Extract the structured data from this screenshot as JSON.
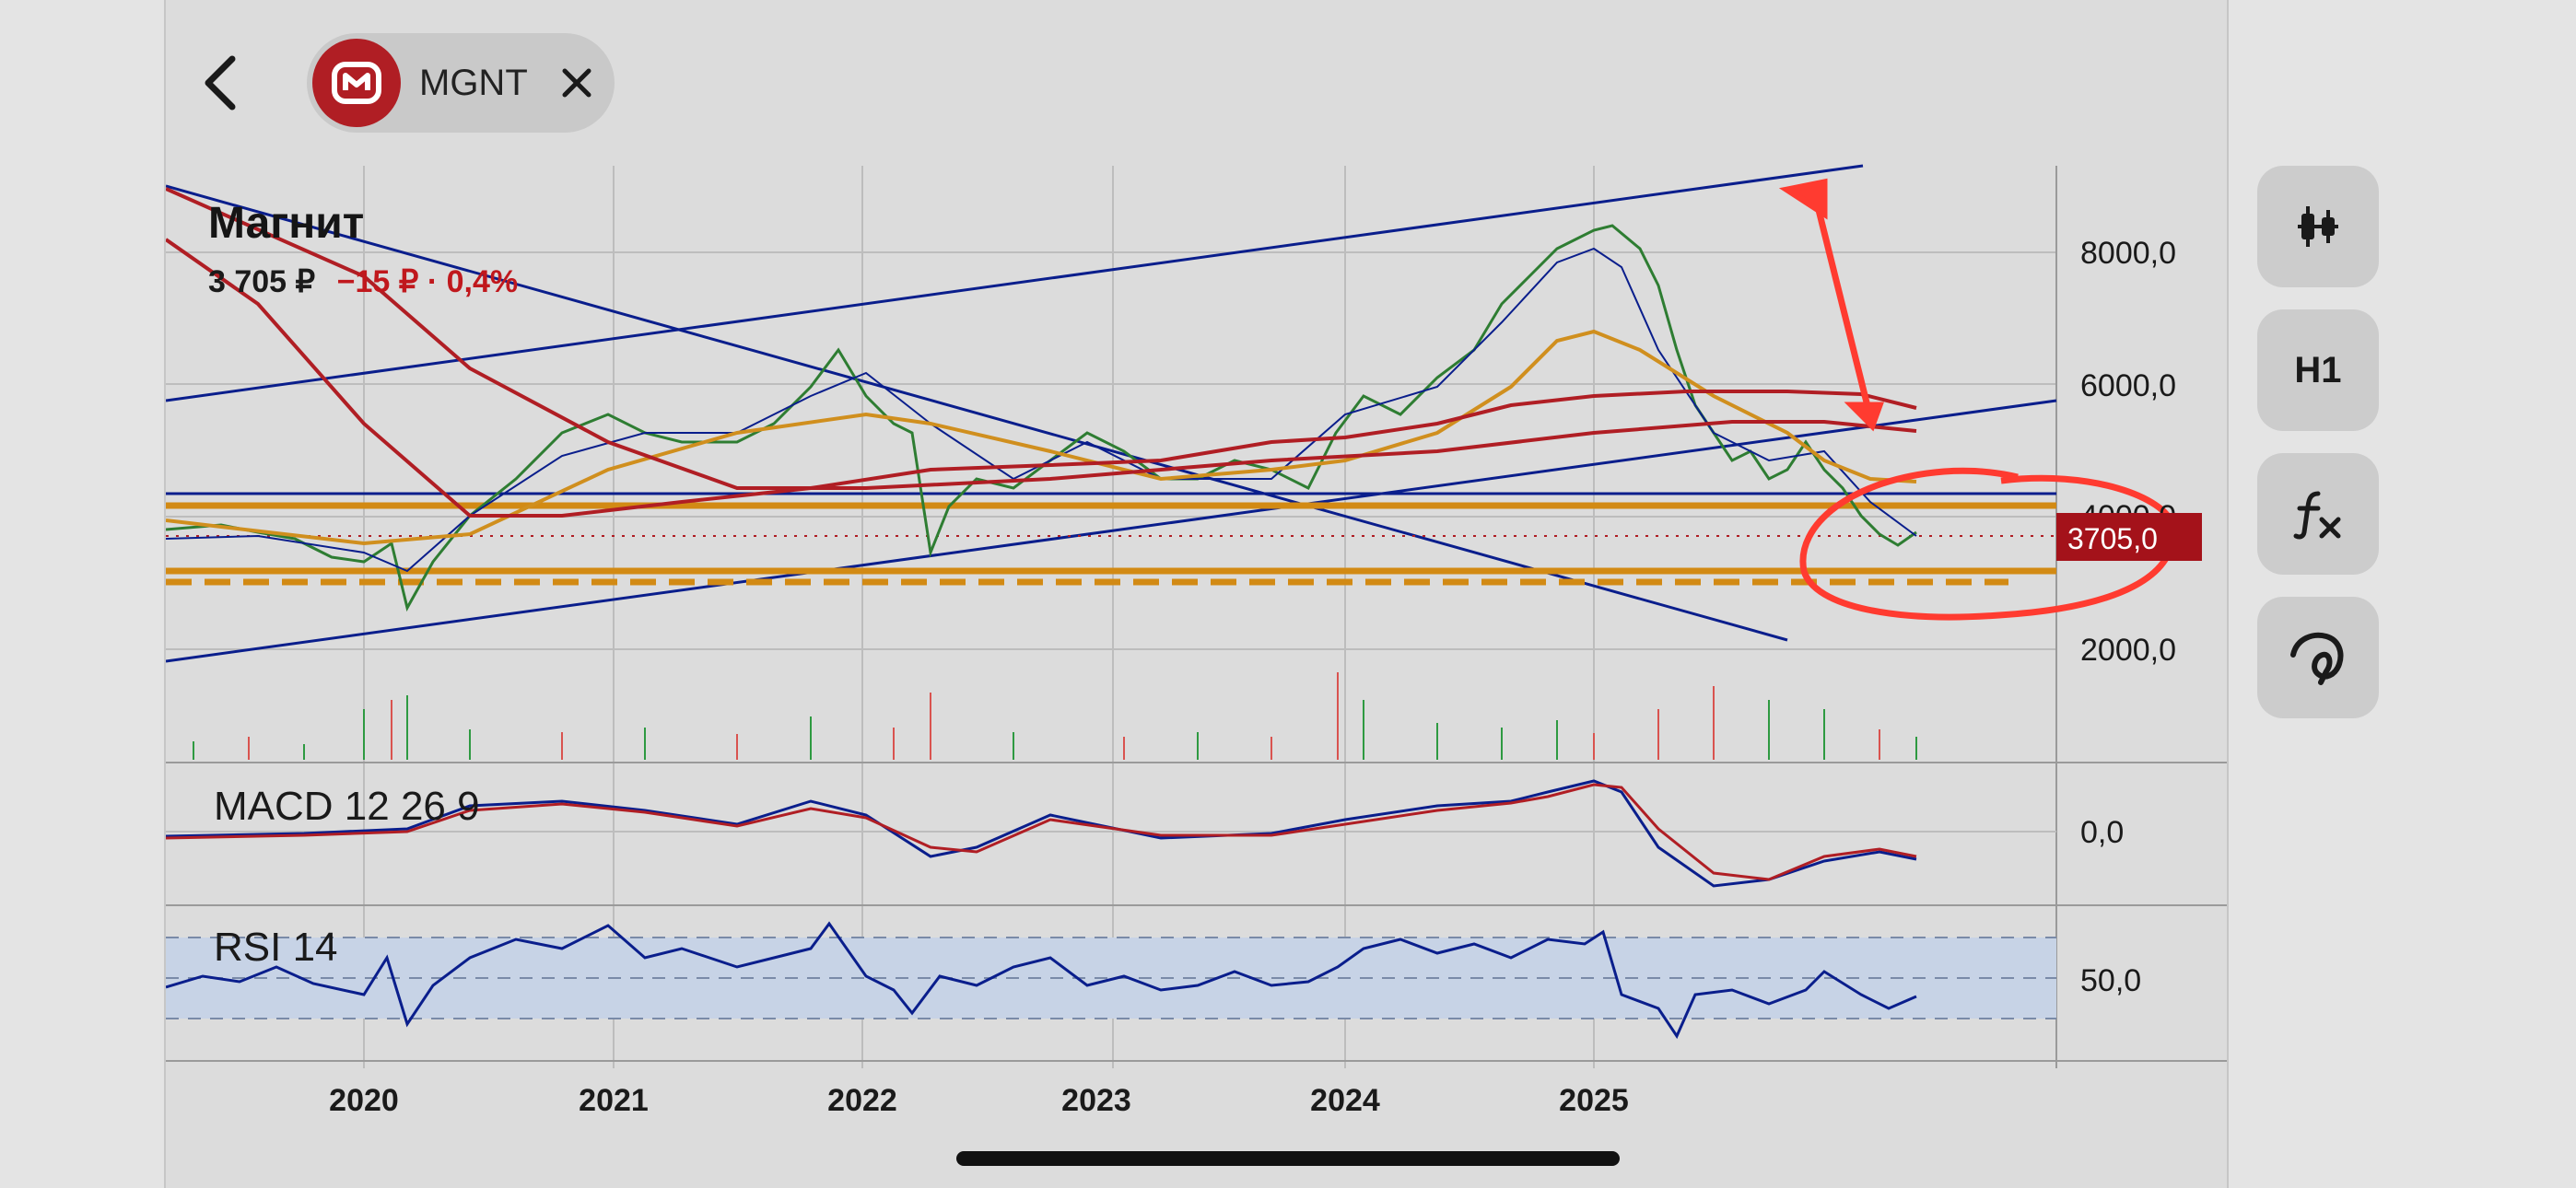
{
  "header": {
    "ticker": "MGNT",
    "logo_icon": "magnit-logo-icon",
    "back_icon": "chevron-left-icon",
    "close_icon": "close-icon"
  },
  "instrument": {
    "name": "Магнит",
    "price": "3 705 ₽",
    "change": "−15 ₽ · 0,4%"
  },
  "toolbar": {
    "chart_type_icon": "candlestick-icon",
    "timeframe": "H1",
    "indicators_icon": "function-fx-icon",
    "drawing_icon": "drawing-pen-icon"
  },
  "price_axis": {
    "labels": [
      "8000,0",
      "6000,0",
      "4000,0",
      "2000,0"
    ],
    "current_price_tag": "3705,0"
  },
  "time_axis": {
    "labels": [
      "2020",
      "2021",
      "2022",
      "2023",
      "2024",
      "2025"
    ]
  },
  "panels": {
    "macd_label": "MACD 12 26 9",
    "macd_axis": "0,0",
    "rsi_label": "RSI 14",
    "rsi_axis": "50,0"
  },
  "colors": {
    "accent_red": "#c0181d",
    "trend_blue": "#0a1e8c",
    "support_orange": "#d28a14",
    "ma_red": "#b01e24",
    "ma_orange": "#d08f1e",
    "annotation_red": "#ff3b30"
  },
  "chart_data": {
    "type": "line",
    "title": "Магнит",
    "x": [
      "2019-05",
      "2019-09",
      "2020-01",
      "2020-03",
      "2020-06",
      "2020-09",
      "2021-01",
      "2021-05",
      "2021-09",
      "2021-11",
      "2022-01",
      "2022-03",
      "2022-06",
      "2022-09",
      "2023-01",
      "2023-05",
      "2023-09",
      "2024-01",
      "2024-04",
      "2024-05",
      "2024-07",
      "2024-10",
      "2025-01",
      "2025-04",
      "2025-06",
      "2025-08"
    ],
    "series": [
      {
        "values": [
          3200,
          3400,
          3300,
          2400,
          3800,
          4600,
          5300,
          5000,
          5700,
          7000,
          5700,
          3200,
          4300,
          5700,
          4400,
          4700,
          4500,
          6200,
          7600,
          8400,
          5800,
          4300,
          4500,
          5000,
          3900,
          3705
        ]
      }
    ],
    "ylim": [
      1500,
      9000
    ],
    "price_axis_ticks": [
      2000,
      4000,
      6000,
      8000
    ],
    "current_price": 3705,
    "grid": true
  }
}
